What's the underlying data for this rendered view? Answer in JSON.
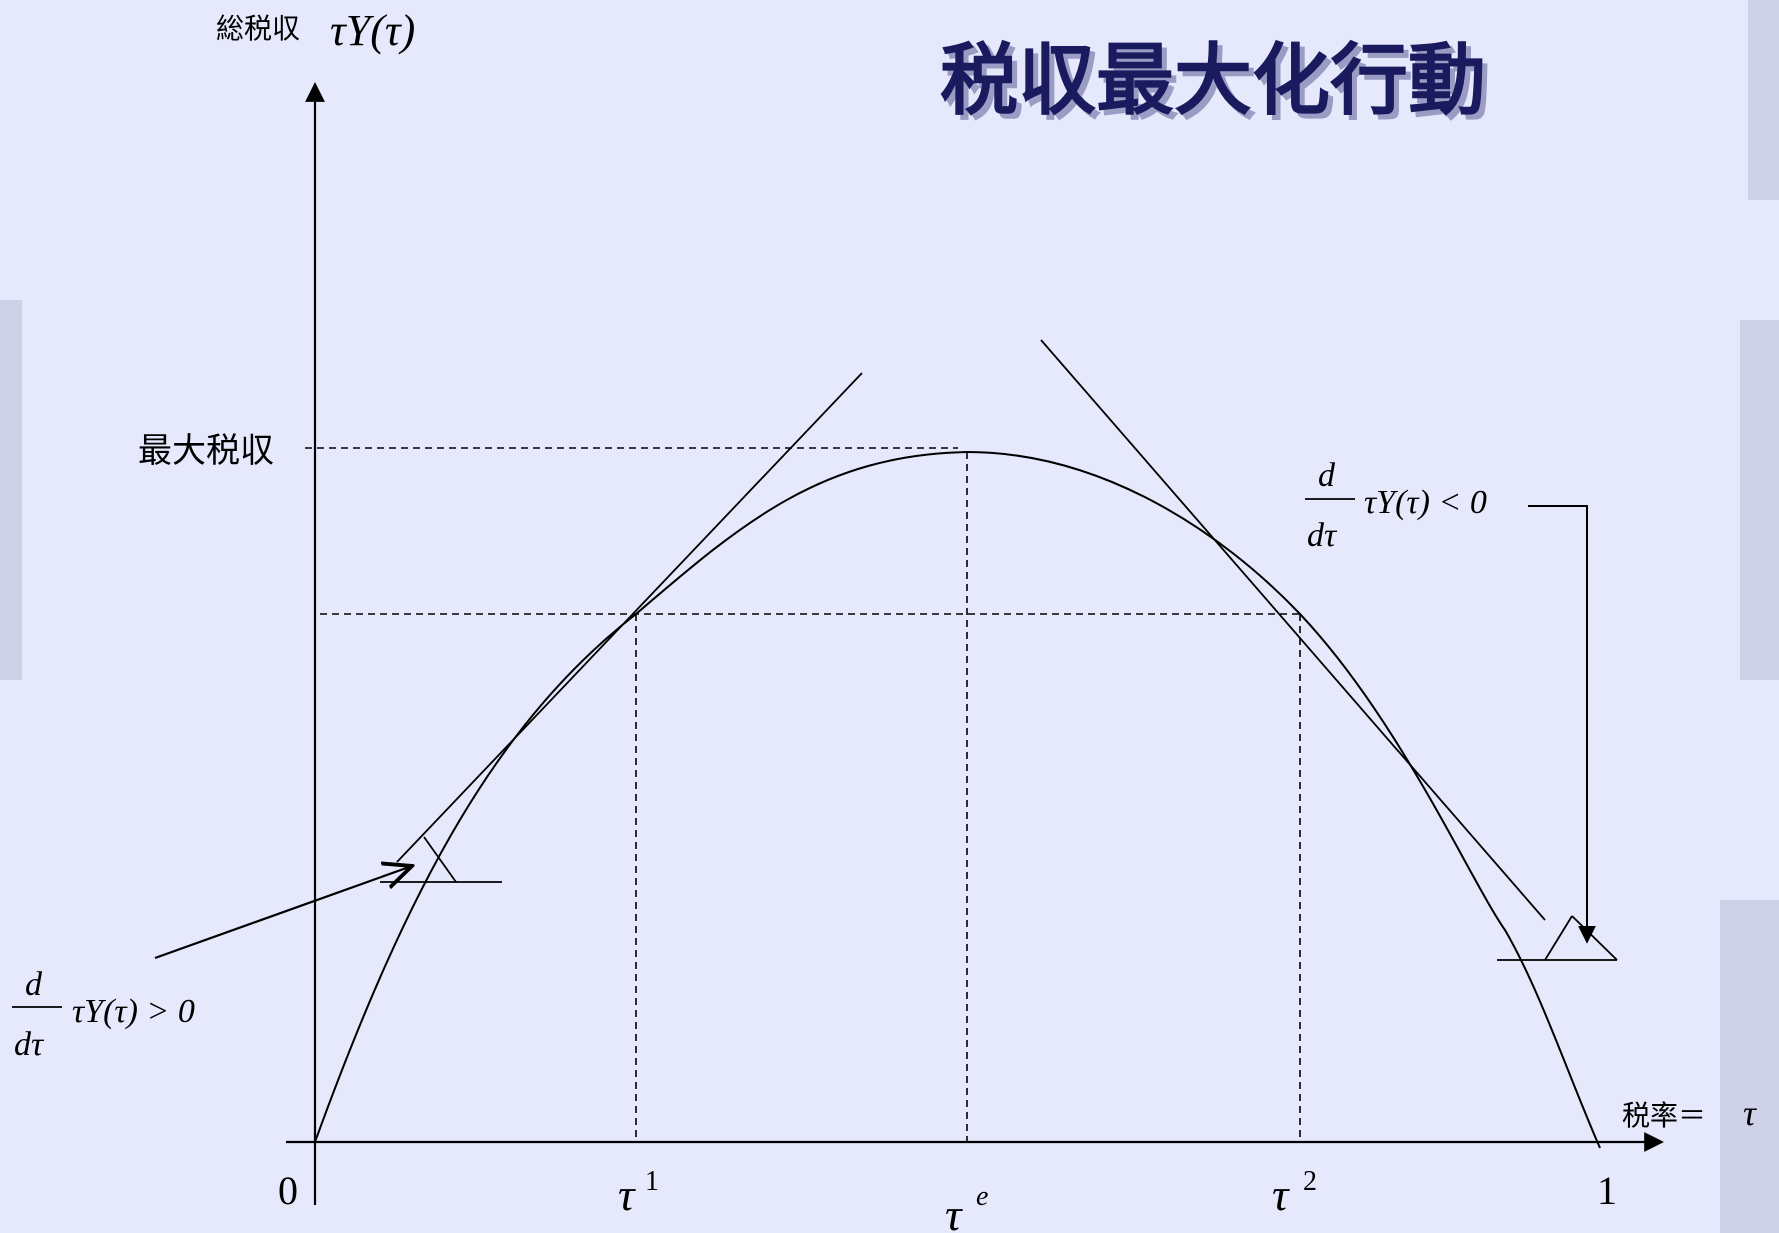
{
  "slide": {
    "title": "税収最大化行動",
    "colors": {
      "background": "#e6e8fb",
      "title": "#1a1a5e",
      "title_shadow": "#8e90b8",
      "ink": "#000000"
    }
  },
  "diagram": {
    "y_axis_label_jp": "総税収",
    "y_axis_label_math": "τY(τ)",
    "x_axis_label_jp": "税率＝",
    "x_axis_label_math": "τ",
    "origin_label": "0",
    "one_label": "1",
    "max_revenue_label": "最大税収",
    "tau1_base": "τ",
    "tau1_sup": "1",
    "taue_base": "τ",
    "taue_sup": "e",
    "tau2_base": "τ",
    "tau2_sup": "2",
    "deriv_pos": {
      "num": "d",
      "den": "dτ",
      "expr": "τY(τ) > 0"
    },
    "deriv_neg": {
      "num": "d",
      "den": "dτ",
      "expr": "τY(τ) < 0"
    }
  }
}
